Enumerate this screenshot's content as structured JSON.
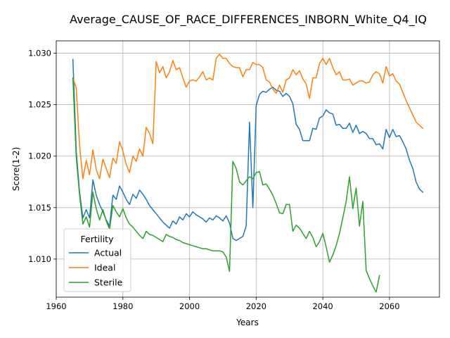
{
  "chart_data": {
    "type": "line",
    "title": "Average_CAUSE_OF_RACE_DIFFERENCES_INBORN_White_Q4_IQ",
    "xlabel": "Years",
    "ylabel": "Score(1-2)",
    "xlim": [
      1960,
      2075
    ],
    "ylim": [
      1.0063,
      1.0312
    ],
    "xticks": [
      1960,
      1980,
      2000,
      2020,
      2040,
      2060
    ],
    "xtick_labels": [
      "1960",
      "1980",
      "2000",
      "2020",
      "2040",
      "2060"
    ],
    "yticks": [
      1.01,
      1.015,
      1.02,
      1.025,
      1.03
    ],
    "ytick_labels": [
      "1.010",
      "1.015",
      "1.020",
      "1.025",
      "1.030"
    ],
    "grid": true,
    "legend": {
      "title": "Fertility",
      "placement": "lower-left"
    },
    "series": [
      {
        "name": "Actual",
        "color": "#1f77b4",
        "x": [
          1965,
          1966,
          1967,
          1968,
          1969,
          1970,
          1971,
          1972,
          1973,
          1974,
          1975,
          1976,
          1977,
          1978,
          1979,
          1980,
          1981,
          1982,
          1983,
          1984,
          1985,
          1986,
          1987,
          1988,
          1989,
          1990,
          1991,
          1992,
          1993,
          1994,
          1995,
          1996,
          1997,
          1998,
          1999,
          2000,
          2001,
          2002,
          2003,
          2004,
          2005,
          2006,
          2007,
          2008,
          2009,
          2010,
          2011,
          2012,
          2013,
          2014,
          2015,
          2016,
          2017,
          2018,
          2019,
          2020,
          2021,
          2022,
          2023,
          2024,
          2025,
          2026,
          2027,
          2028,
          2029,
          2030,
          2031,
          2032,
          2033,
          2034,
          2035,
          2036,
          2037,
          2038,
          2039,
          2040,
          2041,
          2042,
          2043,
          2044,
          2045,
          2046,
          2047,
          2048,
          2049,
          2050,
          2051,
          2052,
          2053,
          2054,
          2055,
          2056,
          2057,
          2058,
          2059,
          2060,
          2061,
          2062,
          2063,
          2064,
          2065,
          2066,
          2067,
          2068,
          2069,
          2070
        ],
        "values": [
          1.0294,
          1.0205,
          1.0165,
          1.014,
          1.0148,
          1.014,
          1.0177,
          1.0162,
          1.0153,
          1.0146,
          1.0138,
          1.0132,
          1.0162,
          1.0158,
          1.0171,
          1.0165,
          1.0158,
          1.0153,
          1.0163,
          1.0159,
          1.0167,
          1.0163,
          1.0158,
          1.0152,
          1.0148,
          1.0144,
          1.014,
          1.0136,
          1.0133,
          1.013,
          1.0137,
          1.0134,
          1.0141,
          1.0138,
          1.0144,
          1.0141,
          1.0146,
          1.0143,
          1.0141,
          1.0139,
          1.0136,
          1.014,
          1.0138,
          1.0142,
          1.014,
          1.0137,
          1.0142,
          1.0135,
          1.012,
          1.0118,
          1.012,
          1.0122,
          1.0132,
          1.0233,
          1.015,
          1.0249,
          1.026,
          1.0263,
          1.0262,
          1.0265,
          1.0267,
          1.0264,
          1.0263,
          1.0258,
          1.0261,
          1.0258,
          1.0251,
          1.0231,
          1.0226,
          1.0215,
          1.0215,
          1.0215,
          1.0227,
          1.0226,
          1.0237,
          1.0239,
          1.0245,
          1.0242,
          1.0241,
          1.023,
          1.0231,
          1.0227,
          1.0227,
          1.0232,
          1.0223,
          1.023,
          1.0222,
          1.0224,
          1.0222,
          1.0217,
          1.0217,
          1.0211,
          1.0212,
          1.0207,
          1.0226,
          1.0218,
          1.0226,
          1.0219,
          1.022,
          1.0214,
          1.0207,
          1.0196,
          1.0188,
          1.0175,
          1.0168,
          1.0165
        ]
      },
      {
        "name": "Ideal",
        "color": "#ff7f0e",
        "x": [
          1965,
          1966,
          1967,
          1968,
          1969,
          1970,
          1971,
          1972,
          1973,
          1974,
          1975,
          1976,
          1977,
          1978,
          1979,
          1980,
          1981,
          1982,
          1983,
          1984,
          1985,
          1986,
          1987,
          1988,
          1989,
          1990,
          1991,
          1992,
          1993,
          1994,
          1995,
          1996,
          1997,
          1998,
          1999,
          2000,
          2001,
          2002,
          2003,
          2004,
          2005,
          2006,
          2007,
          2008,
          2009,
          2010,
          2011,
          2012,
          2013,
          2014,
          2015,
          2016,
          2017,
          2018,
          2019,
          2020,
          2021,
          2022,
          2023,
          2024,
          2025,
          2026,
          2027,
          2028,
          2029,
          2030,
          2031,
          2032,
          2033,
          2034,
          2035,
          2036,
          2037,
          2038,
          2039,
          2040,
          2041,
          2042,
          2043,
          2044,
          2045,
          2046,
          2047,
          2048,
          2049,
          2050,
          2051,
          2052,
          2053,
          2054,
          2055,
          2056,
          2057,
          2058,
          2059,
          2060,
          2061,
          2062,
          2063,
          2064,
          2065,
          2066,
          2067,
          2068,
          2069,
          2070
        ],
        "values": [
          1.0276,
          1.0266,
          1.021,
          1.0178,
          1.0196,
          1.0182,
          1.0206,
          1.0187,
          1.0178,
          1.0197,
          1.0188,
          1.0179,
          1.0198,
          1.0193,
          1.0214,
          1.0205,
          1.0192,
          1.0184,
          1.02,
          1.0195,
          1.0207,
          1.02,
          1.0228,
          1.0222,
          1.0212,
          1.0292,
          1.0281,
          1.0287,
          1.0276,
          1.0282,
          1.0293,
          1.0284,
          1.0286,
          1.0276,
          1.0267,
          1.0273,
          1.0274,
          1.0273,
          1.0277,
          1.0282,
          1.0274,
          1.0276,
          1.0274,
          1.0295,
          1.0299,
          1.0295,
          1.0295,
          1.029,
          1.0287,
          1.0286,
          1.0286,
          1.0277,
          1.0284,
          1.0284,
          1.0291,
          1.0289,
          1.0289,
          1.0286,
          1.0274,
          1.0272,
          1.0265,
          1.0261,
          1.0269,
          1.0262,
          1.0274,
          1.0276,
          1.0284,
          1.0279,
          1.0283,
          1.0275,
          1.027,
          1.0256,
          1.0276,
          1.0276,
          1.029,
          1.0295,
          1.0289,
          1.0295,
          1.0286,
          1.0279,
          1.0282,
          1.0274,
          1.0274,
          1.0275,
          1.0269,
          1.0271,
          1.0273,
          1.0273,
          1.0271,
          1.0272,
          1.0279,
          1.0282,
          1.028,
          1.0271,
          1.0287,
          1.0278,
          1.028,
          1.0273,
          1.027,
          1.0262,
          1.0254,
          1.0247,
          1.024,
          1.0233,
          1.023,
          1.0227
        ]
      },
      {
        "name": "Sterile",
        "color": "#2ca02c",
        "x": [
          1965,
          1966,
          1967,
          1968,
          1969,
          1970,
          1971,
          1972,
          1973,
          1974,
          1975,
          1976,
          1977,
          1978,
          1979,
          1980,
          1981,
          1982,
          1983,
          1984,
          1985,
          1986,
          1987,
          1988,
          1989,
          1990,
          1991,
          1992,
          1993,
          1994,
          1995,
          1996,
          1997,
          1998,
          1999,
          2000,
          2001,
          2002,
          2003,
          2004,
          2005,
          2006,
          2007,
          2008,
          2009,
          2010,
          2011,
          2012,
          2013,
          2014,
          2015,
          2016,
          2017,
          2018,
          2019,
          2020,
          2021,
          2022,
          2023,
          2024,
          2025,
          2026,
          2027,
          2028,
          2029,
          2030,
          2031,
          2032,
          2033,
          2034,
          2035,
          2036,
          2037,
          2038,
          2039,
          2040,
          2041,
          2042,
          2043,
          2044,
          2045,
          2046,
          2047,
          2048,
          2049,
          2050,
          2051,
          2052,
          2053,
          2054,
          2055,
          2056,
          2057
        ],
        "values": [
          1.0276,
          1.0199,
          1.0162,
          1.0134,
          1.0141,
          1.0131,
          1.0165,
          1.0149,
          1.0138,
          1.0148,
          1.0137,
          1.0129,
          1.0152,
          1.0146,
          1.0141,
          1.0149,
          1.014,
          1.0134,
          1.0131,
          1.0127,
          1.0123,
          1.012,
          1.0127,
          1.0124,
          1.0123,
          1.0121,
          1.0119,
          1.0117,
          1.0124,
          1.0122,
          1.0121,
          1.0119,
          1.0118,
          1.0116,
          1.0115,
          1.0114,
          1.0113,
          1.0112,
          1.0111,
          1.011,
          1.011,
          1.0109,
          1.0108,
          1.0108,
          1.0108,
          1.0107,
          1.0102,
          1.0088,
          1.0195,
          1.0188,
          1.0175,
          1.0172,
          1.0176,
          1.018,
          1.0178,
          1.0184,
          1.0185,
          1.0172,
          1.0173,
          1.0168,
          1.0162,
          1.0154,
          1.0145,
          1.0144,
          1.0153,
          1.0153,
          1.0127,
          1.0133,
          1.013,
          1.0125,
          1.012,
          1.0127,
          1.0121,
          1.0112,
          1.0117,
          1.0125,
          1.0112,
          1.0097,
          1.0104,
          1.0113,
          1.0125,
          1.014,
          1.0156,
          1.018,
          1.0149,
          1.0169,
          1.0132,
          1.0156,
          1.0089,
          1.0081,
          1.0074,
          1.0068,
          1.0084
        ]
      }
    ]
  }
}
